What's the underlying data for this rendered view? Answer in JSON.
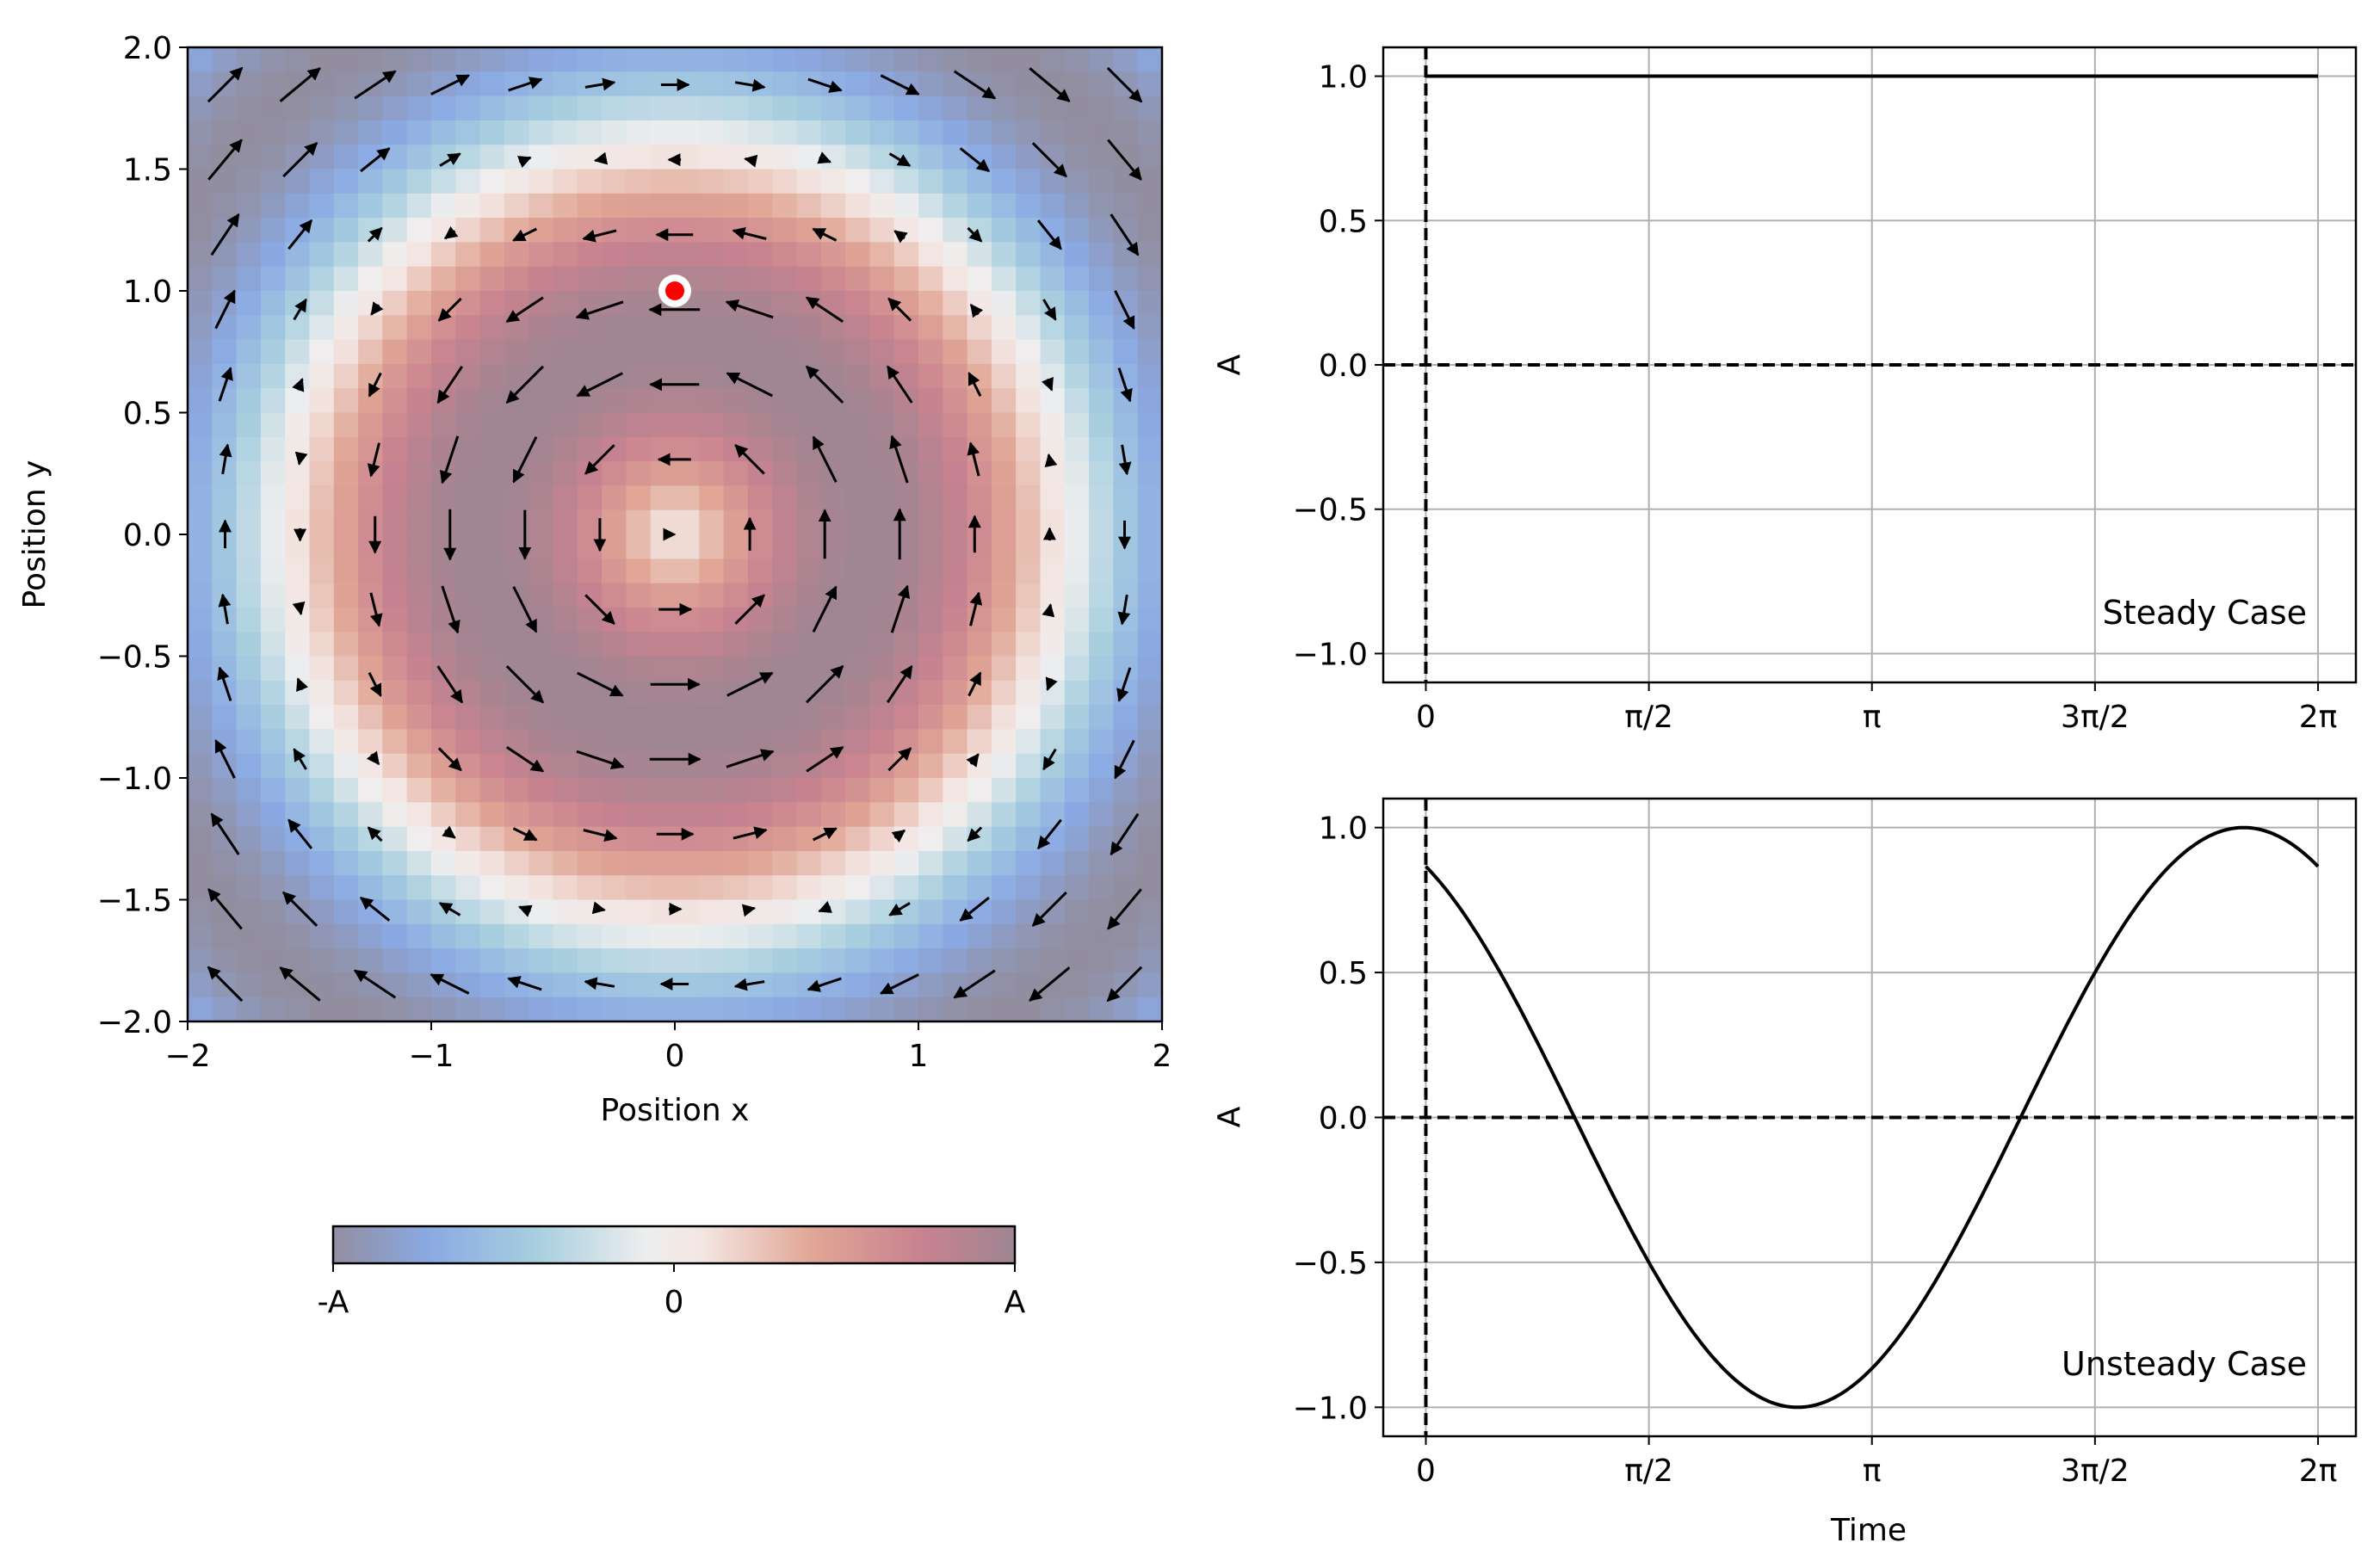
{
  "chart_data": [
    {
      "type": "heatmap",
      "subtype": "vector-field-quiver",
      "xlabel": "Position x",
      "ylabel": "Position y",
      "xlim": [
        -2,
        2
      ],
      "ylim": [
        -2,
        2
      ],
      "xticks": [
        -2,
        -1,
        0,
        1,
        2
      ],
      "yticks": [
        -2.0,
        -1.5,
        -1.0,
        -0.5,
        0.0,
        0.5,
        1.0,
        1.5,
        2.0
      ],
      "field": "A = -sin(pi*x/2)^2 ... radial vortex: value = sin(pi*r/2.4)^2 scaled, peaks (A) on ring r~1, -A at corners",
      "grid_cells": 40,
      "quiver_grid": 13,
      "marker": {
        "x": 0.0,
        "y": 1.0,
        "color": "#ff0000",
        "edge": "#ffffff"
      },
      "colorbar": {
        "tick_labels": [
          "-A",
          "0",
          "A"
        ],
        "stops": [
          "#928ea0",
          "#8aa9e3",
          "#a8cfdf",
          "#eeeeee",
          "#f3e6e2",
          "#e1a796",
          "#c98290",
          "#9f8592"
        ]
      }
    },
    {
      "type": "line",
      "title": "",
      "annotation": "Steady Case",
      "xlabel": "",
      "ylabel": "A",
      "xlim": [
        -0.3,
        6.55
      ],
      "ylim": [
        -1.1,
        1.1
      ],
      "xticks": [
        0,
        1.5708,
        3.1416,
        4.7124,
        6.2832
      ],
      "xtick_labels": [
        "0",
        "π/2",
        "π",
        "3π/2",
        "2π"
      ],
      "yticks": [
        1.0,
        0.5,
        0.0,
        -0.5,
        -1.0
      ],
      "ytick_labels": [
        "1.0",
        "0.5",
        "0.0",
        "−0.5",
        "−1.0"
      ],
      "series": [
        {
          "name": "steady",
          "x": [
            0,
            6.2832
          ],
          "values": [
            1.0,
            1.0
          ]
        }
      ],
      "reference_lines": {
        "vertical_x": 0,
        "horizontal_y": 0
      }
    },
    {
      "type": "line",
      "title": "",
      "annotation": "Unsteady Case",
      "xlabel": "Time",
      "ylabel": "A",
      "xlim": [
        -0.3,
        6.55
      ],
      "ylim": [
        -1.1,
        1.1
      ],
      "xticks": [
        0,
        1.5708,
        3.1416,
        4.7124,
        6.2832
      ],
      "xtick_labels": [
        "0",
        "π/2",
        "π",
        "3π/2",
        "2π"
      ],
      "yticks": [
        1.0,
        0.5,
        0.0,
        -0.5,
        -1.0
      ],
      "ytick_labels": [
        "1.0",
        "0.5",
        "0.0",
        "−0.5",
        "−1.0"
      ],
      "series": [
        {
          "name": "unsteady",
          "function": "cos(t + pi/6)",
          "x_range": [
            0,
            6.2832
          ]
        }
      ],
      "reference_lines": {
        "vertical_x": 0,
        "horizontal_y": 0
      }
    }
  ]
}
